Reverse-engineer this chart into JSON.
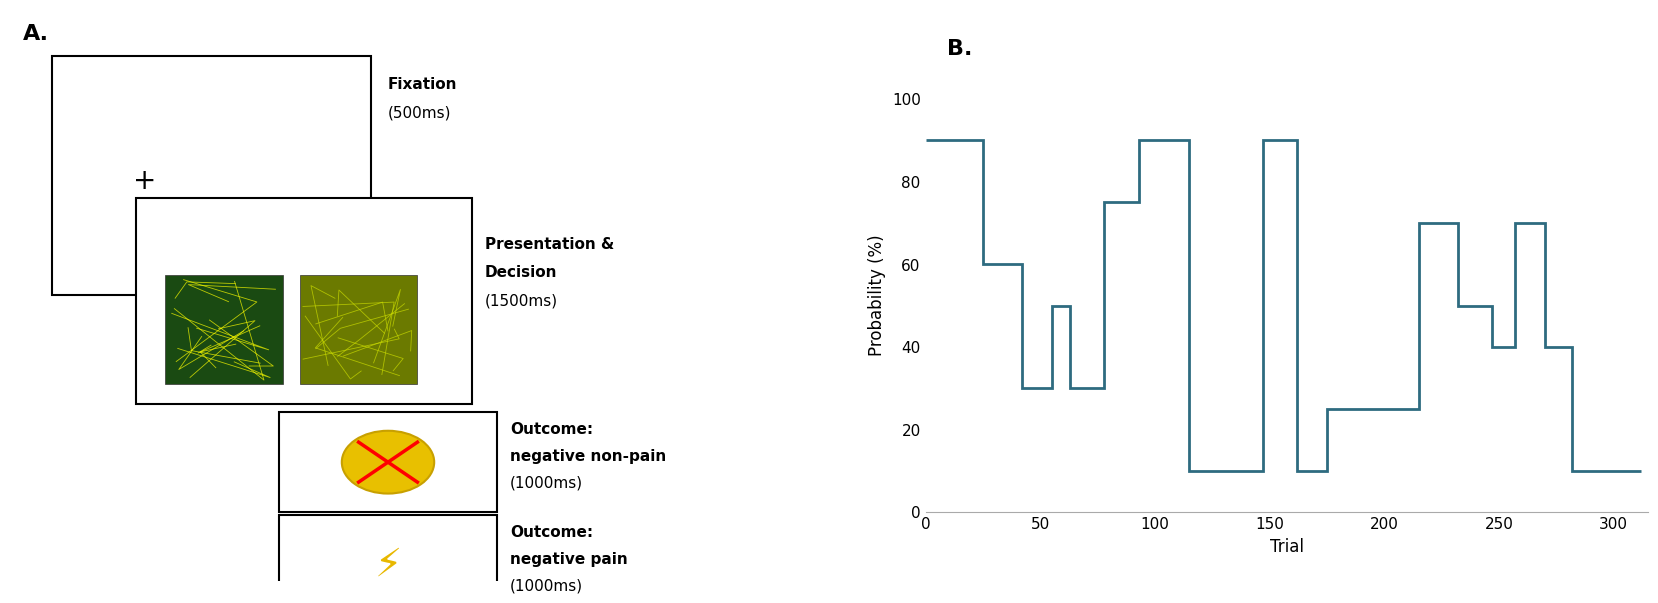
{
  "line_x": [
    0,
    25,
    25,
    42,
    42,
    55,
    55,
    63,
    63,
    78,
    78,
    93,
    93,
    115,
    115,
    135,
    135,
    147,
    147,
    162,
    162,
    175,
    175,
    215,
    215,
    232,
    232,
    247,
    247,
    257,
    257,
    270,
    270,
    282,
    282,
    312
  ],
  "line_y": [
    90,
    90,
    60,
    60,
    30,
    30,
    50,
    50,
    30,
    30,
    75,
    75,
    90,
    90,
    10,
    10,
    10,
    10,
    90,
    90,
    10,
    10,
    25,
    25,
    70,
    70,
    50,
    50,
    40,
    40,
    70,
    70,
    40,
    40,
    10,
    10
  ],
  "xlabel": "Trial",
  "ylabel": "Probability (%)",
  "xlim": [
    0,
    315
  ],
  "ylim": [
    0,
    105
  ],
  "xticks": [
    0,
    50,
    100,
    150,
    200,
    250,
    300
  ],
  "yticks": [
    0,
    20,
    40,
    60,
    80,
    100
  ],
  "line_color": "#2e6b80",
  "line_width": 2.0,
  "panel_b_label": "B.",
  "panel_a_label": "A.",
  "bg_color": "#ffffff",
  "title_fontsize": 16,
  "label_fontsize": 12,
  "tick_fontsize": 11,
  "fixation_label": "Fixation",
  "fixation_time": "(500ms)",
  "presentation_label1": "Presentation &",
  "presentation_label2": "Decision",
  "presentation_time": "(1500ms)",
  "outcome1_label1": "Outcome:",
  "outcome1_label2": "negative non-pain",
  "outcome1_time": "(1000ms)",
  "outcome2_label1": "Outcome:",
  "outcome2_label2": "negative pain",
  "outcome2_time": "(1000ms)"
}
